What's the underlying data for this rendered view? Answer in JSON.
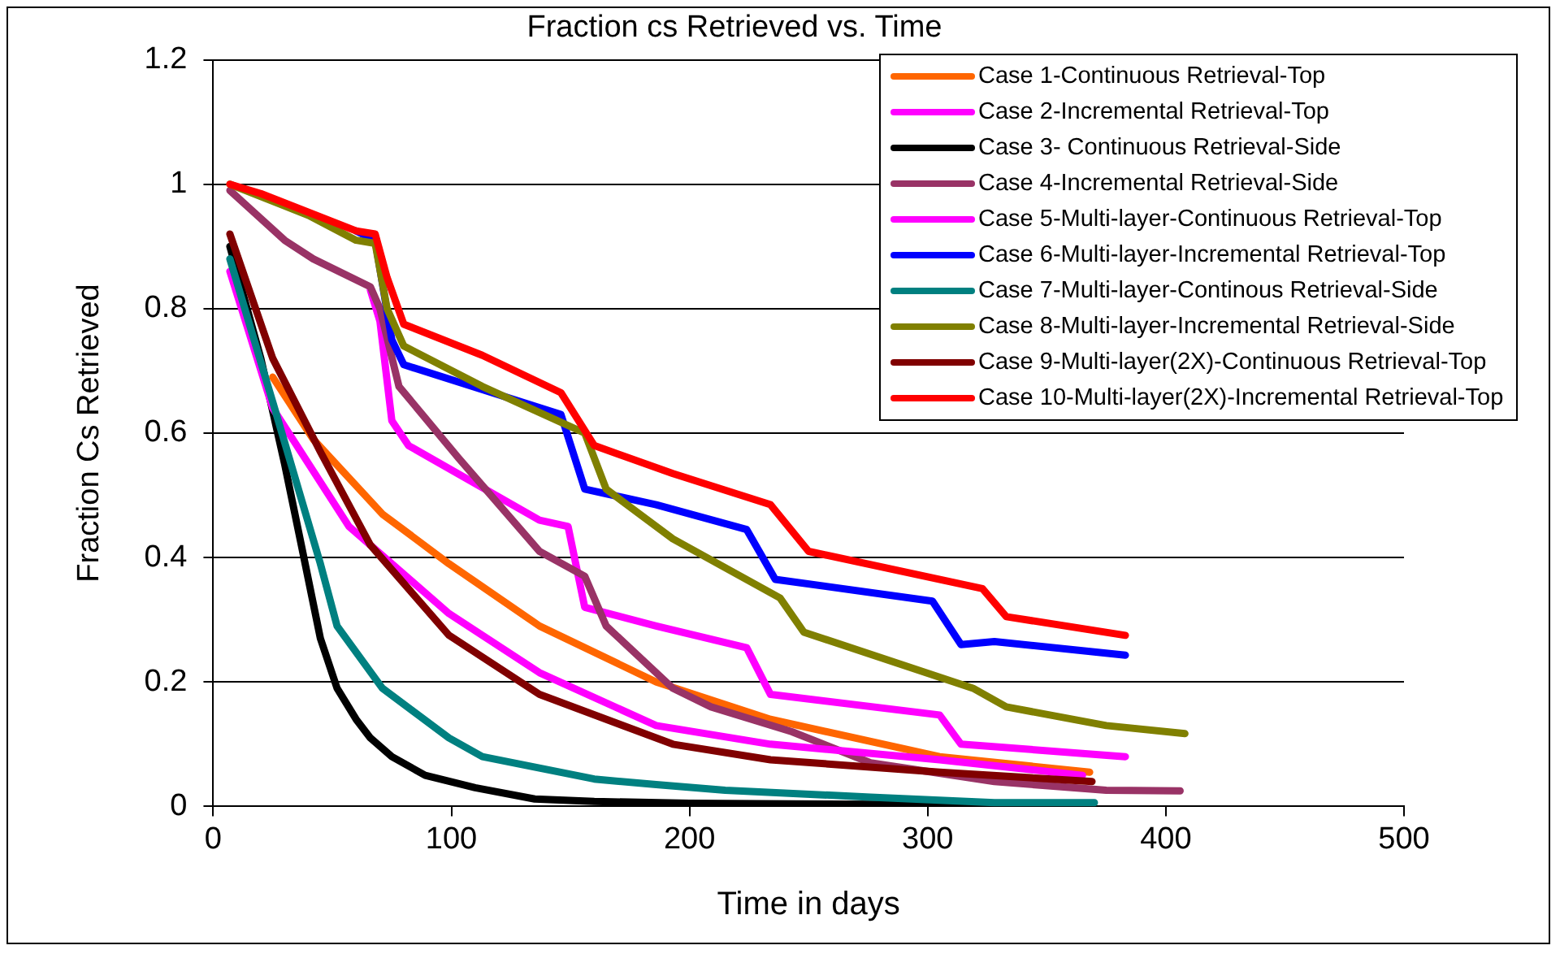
{
  "chart_data": {
    "type": "line",
    "title": "Fraction cs Retrieved vs. Time",
    "xlabel": "Time in days",
    "ylabel": "Fraction Cs Retrieved",
    "xlim": [
      0,
      500
    ],
    "xticks": [
      0,
      100,
      200,
      300,
      400,
      500
    ],
    "ylim": [
      0,
      1.2
    ],
    "yticks": [
      0,
      0.2,
      0.4,
      0.6,
      0.8,
      1,
      1.2
    ],
    "grid": "y",
    "legend": "top right",
    "marker": "none",
    "line_style": "solid",
    "series": [
      {
        "name": "Case 1-Continuous Retrieval-Top",
        "color": "#ff6600",
        "x": [
          25,
          42,
          71,
          99,
          137,
          186,
          234,
          305,
          368
        ],
        "values": [
          0.69,
          0.59,
          0.47,
          0.39,
          0.29,
          0.2,
          0.14,
          0.08,
          0.055
        ]
      },
      {
        "name": "Case 2-Incremental Retrieval-Top",
        "color": "#ff00ff",
        "x": [
          66,
          70,
          75,
          82,
          137,
          149,
          156,
          186,
          224,
          234,
          305,
          314,
          383
        ],
        "values": [
          0.83,
          0.78,
          0.62,
          0.58,
          0.46,
          0.45,
          0.32,
          0.29,
          0.255,
          0.18,
          0.147,
          0.1,
          0.08
        ]
      },
      {
        "name": "Case 3- Continuous Retrieval-Side",
        "color": "#000000",
        "x": [
          7,
          20,
          30,
          37,
          45,
          52,
          60,
          66,
          75,
          89,
          110,
          135,
          160,
          200,
          300,
          365
        ],
        "values": [
          0.9,
          0.72,
          0.55,
          0.42,
          0.27,
          0.19,
          0.14,
          0.11,
          0.08,
          0.05,
          0.03,
          0.012,
          0.008,
          0.005,
          0.003,
          0.002
        ]
      },
      {
        "name": "Case 4-Incremental Retrieval-Side",
        "color": "#993366",
        "x": [
          7,
          30,
          42,
          66,
          70,
          78,
          103,
          137,
          156,
          165,
          193,
          209,
          243,
          276,
          328,
          375,
          406
        ],
        "values": [
          0.99,
          0.91,
          0.88,
          0.835,
          0.8,
          0.675,
          0.56,
          0.41,
          0.37,
          0.29,
          0.19,
          0.16,
          0.12,
          0.07,
          0.04,
          0.026,
          0.025
        ]
      },
      {
        "name": "Case 5-Multi-layer-Continuous Retrieval-Top",
        "color": "#ff00ff",
        "x": [
          7,
          25,
          57,
          99,
          137,
          186,
          234,
          305,
          365
        ],
        "values": [
          0.86,
          0.64,
          0.45,
          0.31,
          0.215,
          0.13,
          0.1,
          0.075,
          0.05
        ]
      },
      {
        "name": "Case 6-Multi-layer-Incremental Retrieval-Top",
        "color": "#0000ff",
        "x": [
          60,
          68,
          75,
          80,
          146,
          156,
          186,
          224,
          236,
          302,
          314,
          328,
          383
        ],
        "values": [
          0.925,
          0.91,
          0.75,
          0.71,
          0.63,
          0.51,
          0.485,
          0.445,
          0.365,
          0.33,
          0.26,
          0.265,
          0.243
        ]
      },
      {
        "name": "Case 7-Multi-layer-Continous Retrieval-Side",
        "color": "#008080",
        "x": [
          7,
          25,
          45,
          52,
          71,
          99,
          113,
          160,
          186,
          215,
          276,
          328,
          370
        ],
        "values": [
          0.88,
          0.65,
          0.39,
          0.29,
          0.19,
          0.11,
          0.08,
          0.044,
          0.035,
          0.026,
          0.015,
          0.006,
          0.006
        ]
      },
      {
        "name": "Case 8-Multi-layer-Incremental Retrieval-Side",
        "color": "#808000",
        "x": [
          7,
          40,
          60,
          68,
          73,
          80,
          113,
          156,
          165,
          193,
          238,
          248,
          319,
          333,
          375,
          408
        ],
        "values": [
          1,
          0.95,
          0.91,
          0.905,
          0.8,
          0.74,
          0.675,
          0.6,
          0.51,
          0.43,
          0.335,
          0.28,
          0.19,
          0.16,
          0.13,
          0.117
        ]
      },
      {
        "name": "Case 9-Multi-layer(2X)-Continuous Retrieval-Top",
        "color": "#800000",
        "x": [
          7,
          25,
          45,
          66,
          99,
          137,
          193,
          234,
          305,
          369
        ],
        "values": [
          0.92,
          0.72,
          0.57,
          0.42,
          0.275,
          0.18,
          0.1,
          0.075,
          0.055,
          0.04
        ]
      },
      {
        "name": "Case 10-Multi-layer(2X)-Incremental Retrieval-Top",
        "color": "#ff0000",
        "x": [
          7,
          20,
          40,
          60,
          68,
          73,
          80,
          113,
          146,
          160,
          193,
          234,
          250,
          323,
          333,
          383
        ],
        "values": [
          1,
          0.985,
          0.955,
          0.925,
          0.92,
          0.85,
          0.775,
          0.725,
          0.665,
          0.58,
          0.535,
          0.485,
          0.41,
          0.35,
          0.305,
          0.275
        ]
      }
    ]
  }
}
